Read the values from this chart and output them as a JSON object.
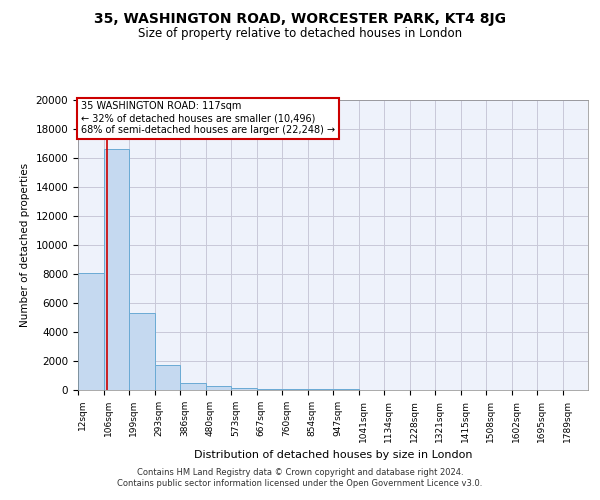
{
  "title1": "35, WASHINGTON ROAD, WORCESTER PARK, KT4 8JG",
  "title2": "Size of property relative to detached houses in London",
  "xlabel": "Distribution of detached houses by size in London",
  "ylabel": "Number of detached properties",
  "footer1": "Contains HM Land Registry data © Crown copyright and database right 2024.",
  "footer2": "Contains public sector information licensed under the Open Government Licence v3.0.",
  "annotation_title": "35 WASHINGTON ROAD: 117sqm",
  "annotation_line1": "← 32% of detached houses are smaller (10,496)",
  "annotation_line2": "68% of semi-detached houses are larger (22,248) →",
  "property_size": 117,
  "bar_edges": [
    12,
    106,
    199,
    293,
    386,
    480,
    573,
    667,
    760,
    854,
    947,
    1041,
    1134,
    1228,
    1321,
    1415,
    1508,
    1602,
    1695,
    1789,
    1882
  ],
  "bar_heights": [
    8100,
    16600,
    5300,
    1700,
    500,
    250,
    150,
    100,
    70,
    50,
    35,
    0,
    0,
    0,
    0,
    0,
    0,
    0,
    0,
    0
  ],
  "bar_color": "#c5d9f0",
  "bar_edge_color": "#6aaad4",
  "vline_color": "#cc0000",
  "annotation_box_color": "#cc0000",
  "grid_color": "#c8c8d8",
  "background_color": "#eef2fb",
  "ylim": [
    0,
    20000
  ],
  "yticks": [
    0,
    2000,
    4000,
    6000,
    8000,
    10000,
    12000,
    14000,
    16000,
    18000,
    20000
  ]
}
